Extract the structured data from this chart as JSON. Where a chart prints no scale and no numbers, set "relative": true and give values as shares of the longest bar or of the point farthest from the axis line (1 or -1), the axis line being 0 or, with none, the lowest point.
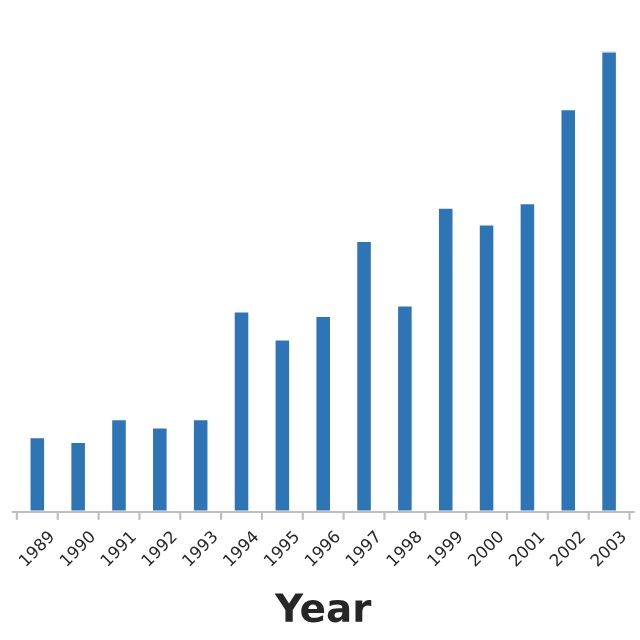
{
  "chart_data": {
    "type": "bar",
    "xlabel": "Year",
    "relative": true,
    "categories": [
      "1989",
      "1990",
      "1991",
      "1992",
      "1993",
      "1994",
      "1995",
      "1996",
      "1997",
      "1998",
      "1999",
      "2000",
      "2001",
      "2002",
      "2003"
    ],
    "values": [
      0.163,
      0.153,
      0.202,
      0.184,
      0.202,
      0.436,
      0.375,
      0.426,
      0.589,
      0.449,
      0.661,
      0.625,
      0.671,
      0.875,
      1
    ],
    "color": "#2e75b6",
    "grid": false,
    "legend": false
  }
}
